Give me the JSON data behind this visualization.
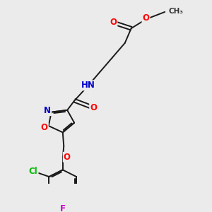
{
  "bg_color": "#ebebeb",
  "bond_color": "#1a1a1a",
  "bond_width": 1.4,
  "atom_colors": {
    "O": "#ff0000",
    "N": "#0000cc",
    "Cl": "#00bb00",
    "F": "#cc00cc",
    "C": "#1a1a1a",
    "H": "#666666"
  },
  "font_size": 8.5,
  "figsize": [
    3.0,
    3.0
  ],
  "dpi": 100
}
